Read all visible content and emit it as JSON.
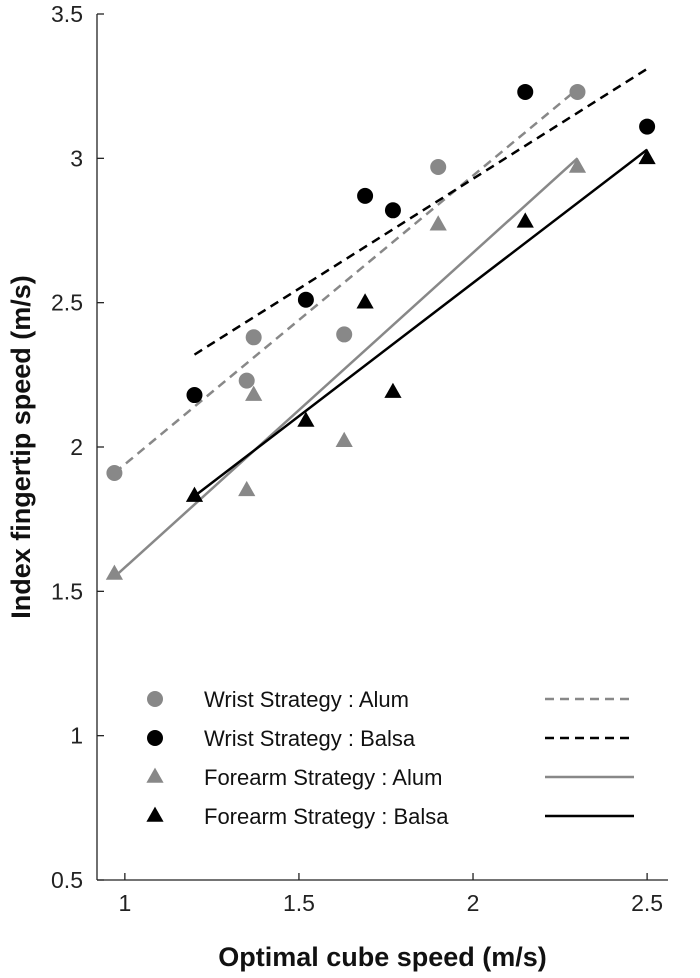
{
  "chart_data": {
    "type": "scatter",
    "title": "",
    "xlabel": "Optimal cube speed (m/s)",
    "ylabel": "Index fingertip speed (m/s)",
    "xlim": [
      0.92,
      2.56
    ],
    "ylim": [
      0.5,
      3.5
    ],
    "xticks": [
      1,
      1.5,
      2,
      2.5
    ],
    "xtick_labels": [
      "1",
      "1.5",
      "2",
      "2.5"
    ],
    "yticks": [
      0.5,
      1,
      1.5,
      2,
      2.5,
      3,
      3.5
    ],
    "ytick_labels": [
      "0.5",
      "1",
      "1.5",
      "2",
      "2.5",
      "3",
      "3.5"
    ],
    "grid": false,
    "legend_position": "bottom-left",
    "colors": {
      "gray": "#888888",
      "black": "#000000",
      "axis": "#222222"
    },
    "series": [
      {
        "name": "Wrist Strategy : Alum",
        "marker": "circle",
        "color": "#888888",
        "points": [
          [
            0.97,
            1.91
          ],
          [
            1.35,
            2.23
          ],
          [
            1.37,
            2.38
          ],
          [
            1.63,
            2.39
          ],
          [
            1.9,
            2.97
          ],
          [
            2.3,
            3.23
          ]
        ]
      },
      {
        "name": "Wrist Strategy : Balsa",
        "marker": "circle",
        "color": "#000000",
        "points": [
          [
            1.2,
            2.18
          ],
          [
            1.52,
            2.51
          ],
          [
            1.69,
            2.87
          ],
          [
            1.77,
            2.82
          ],
          [
            2.15,
            3.23
          ],
          [
            2.5,
            3.11
          ]
        ]
      },
      {
        "name": "Forearm Strategy : Alum",
        "marker": "triangle",
        "color": "#888888",
        "points": [
          [
            0.97,
            1.56
          ],
          [
            1.35,
            1.85
          ],
          [
            1.37,
            2.18
          ],
          [
            1.63,
            2.02
          ],
          [
            1.9,
            2.77
          ],
          [
            2.3,
            2.97
          ]
        ]
      },
      {
        "name": "Forearm Strategy : Balsa",
        "marker": "triangle",
        "color": "#000000",
        "points": [
          [
            1.2,
            1.83
          ],
          [
            1.52,
            2.09
          ],
          [
            1.69,
            2.5
          ],
          [
            1.77,
            2.19
          ],
          [
            2.15,
            2.78
          ],
          [
            2.5,
            3.0
          ]
        ]
      }
    ],
    "fit_lines": [
      {
        "series": "Wrist Strategy : Alum",
        "style": "dashed",
        "color": "#888888",
        "x": [
          0.97,
          2.3
        ],
        "y": [
          1.91,
          3.24
        ]
      },
      {
        "series": "Wrist Strategy : Balsa",
        "style": "dashed",
        "color": "#000000",
        "x": [
          1.2,
          2.5
        ],
        "y": [
          2.32,
          3.31
        ]
      },
      {
        "series": "Forearm Strategy : Alum",
        "style": "solid",
        "color": "#888888",
        "x": [
          0.97,
          2.3
        ],
        "y": [
          1.55,
          3.0
        ]
      },
      {
        "series": "Forearm Strategy : Balsa",
        "style": "solid",
        "color": "#000000",
        "x": [
          1.2,
          2.5
        ],
        "y": [
          1.83,
          3.03
        ]
      }
    ]
  }
}
